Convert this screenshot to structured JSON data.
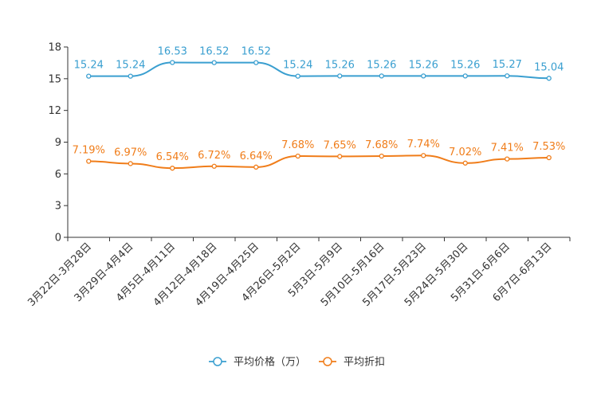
{
  "chart_data": {
    "type": "line",
    "categories": [
      "3月22日-3月28日",
      "3月29日-4月4日",
      "4月5日-4月11日",
      "4月12日-4月18日",
      "4月19日-4月25日",
      "4月26日-5月2日",
      "5月3日-5月9日",
      "5月10日-5月16日",
      "5月17日-5月23日",
      "5月24日-5月30日",
      "5月31日-6月6日",
      "6月7日-6月13日"
    ],
    "series": [
      {
        "name": "平均价格（万）",
        "color": "#3a9fd0",
        "values": [
          15.24,
          15.24,
          16.53,
          16.52,
          16.52,
          15.24,
          15.26,
          15.26,
          15.26,
          15.26,
          15.27,
          15.04
        ],
        "labels": [
          "15.24",
          "15.24",
          "16.53",
          "16.52",
          "16.52",
          "15.24",
          "15.26",
          "15.26",
          "15.26",
          "15.26",
          "15.27",
          "15.04"
        ]
      },
      {
        "name": "平均折扣",
        "color": "#f07d1a",
        "values": [
          7.19,
          6.97,
          6.54,
          6.72,
          6.64,
          7.68,
          7.65,
          7.68,
          7.74,
          7.02,
          7.41,
          7.53
        ],
        "labels": [
          "7.19%",
          "6.97%",
          "6.54%",
          "6.72%",
          "6.64%",
          "7.68%",
          "7.65%",
          "7.68%",
          "7.74%",
          "7.02%",
          "7.41%",
          "7.53%"
        ]
      }
    ],
    "ylim": [
      0,
      18
    ],
    "yticks": [
      0,
      3,
      6,
      9,
      12,
      15,
      18
    ],
    "title": "",
    "xlabel": "",
    "ylabel": "",
    "legend": "bottom-center"
  }
}
